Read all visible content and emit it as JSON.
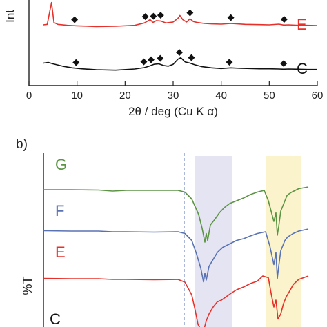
{
  "panel_b_label": "b)",
  "chart_data": [
    {
      "type": "line",
      "panel": "a",
      "title": "",
      "xlabel": "2θ / deg (Cu K α)",
      "ylabel_visible": "Int",
      "xlim": [
        0,
        60
      ],
      "xticks": [
        0,
        10,
        20,
        30,
        40,
        50,
        60
      ],
      "marker_symbol": "◆",
      "series": [
        {
          "name": "E",
          "color": "#e8302a",
          "x": [
            3,
            3.8,
            4.3,
            4.7,
            5.2,
            6,
            8,
            10,
            14,
            18,
            22,
            24,
            25.2,
            25.8,
            26.5,
            27.5,
            28.5,
            30,
            31,
            31.4,
            32,
            32.8,
            33.5,
            34.2,
            35,
            36.5,
            38,
            40,
            42,
            45,
            48,
            50,
            52,
            53,
            54,
            56,
            58,
            60
          ],
          "y": [
            0.0,
            0.02,
            0.55,
            0.95,
            0.1,
            0.02,
            -0.02,
            -0.04,
            -0.07,
            -0.06,
            -0.02,
            0.08,
            0.22,
            0.1,
            0.18,
            0.16,
            0.08,
            0.12,
            0.28,
            0.4,
            0.22,
            0.12,
            0.26,
            0.14,
            0.1,
            0.06,
            0.04,
            0.03,
            0.06,
            0.02,
            0.01,
            0.0,
            0.03,
            -0.01,
            0.0,
            -0.02,
            -0.02,
            -0.03
          ],
          "markers_x": [
            9.5,
            24.2,
            25.9,
            27.4,
            33.5,
            42.0,
            53.1
          ]
        },
        {
          "name": "C",
          "color": "#111111",
          "x": [
            3,
            4,
            5,
            7,
            9,
            11,
            14,
            18,
            22,
            24,
            25,
            26,
            27,
            28,
            29,
            30,
            31,
            31.6,
            32.5,
            33.5,
            34.5,
            36,
            38,
            40,
            42,
            44,
            46,
            48,
            50,
            52,
            53,
            54,
            56,
            58,
            60
          ],
          "y": [
            0.25,
            0.28,
            0.22,
            0.12,
            0.05,
            0.01,
            -0.03,
            -0.05,
            0.0,
            0.06,
            0.12,
            0.2,
            0.22,
            0.15,
            0.12,
            0.2,
            0.42,
            0.48,
            0.3,
            0.25,
            0.18,
            0.1,
            0.05,
            0.02,
            0.05,
            0.03,
            0.02,
            0.01,
            0.01,
            0.0,
            -0.01,
            0.0,
            -0.01,
            -0.02,
            -0.02
          ],
          "markers_x": [
            9.8,
            23.9,
            25.4,
            27.3,
            31.3,
            33.8,
            41.7,
            53.0
          ]
        }
      ]
    },
    {
      "type": "line",
      "panel": "b",
      "title": "",
      "ylabel": "%T",
      "dashed_reference_line": true,
      "highlight_bands": [
        {
          "color": "#e4e4f2"
        },
        {
          "color": "#fbf3cc"
        }
      ],
      "series": [
        {
          "name": "G",
          "color": "#5c9444",
          "x": [
            0,
            40,
            80,
            100,
            120,
            160,
            195,
            205,
            215,
            225,
            230,
            234,
            236,
            238,
            242,
            248,
            255,
            262,
            270,
            280,
            290,
            300,
            310,
            320,
            326,
            334,
            337,
            339,
            341,
            344,
            347,
            350,
            353,
            356,
            360,
            370,
            384
          ],
          "y": [
            0.02,
            0.02,
            0.01,
            -0.02,
            0.0,
            0.0,
            0.0,
            -0.05,
            -0.25,
            -0.7,
            -1.1,
            -1.5,
            -1.25,
            -1.45,
            -1.0,
            -0.85,
            -0.65,
            -0.5,
            -0.38,
            -0.3,
            -0.22,
            -0.12,
            -0.05,
            0.0,
            -0.3,
            -0.9,
            -0.65,
            -1.3,
            -1.05,
            -0.6,
            -0.45,
            -0.3,
            -0.15,
            -0.1,
            -0.05,
            0.05,
            0.1
          ]
        },
        {
          "name": "F",
          "color": "#5872b4",
          "x": [
            0,
            40,
            80,
            100,
            120,
            160,
            195,
            205,
            215,
            222,
            228,
            232,
            234,
            236,
            240,
            246,
            252,
            260,
            270,
            280,
            290,
            300,
            310,
            322,
            328,
            334,
            337,
            339,
            341,
            344,
            347,
            350,
            354,
            358,
            362,
            370,
            384
          ],
          "y": [
            0.03,
            0.02,
            0.02,
            0.0,
            0.0,
            -0.01,
            0.0,
            -0.05,
            -0.25,
            -0.65,
            -1.05,
            -1.45,
            -1.2,
            -1.4,
            -1.0,
            -0.8,
            -0.6,
            -0.45,
            -0.35,
            -0.25,
            -0.2,
            -0.12,
            -0.05,
            0.0,
            -0.4,
            -0.95,
            -0.6,
            -1.35,
            -1.0,
            -0.55,
            -0.4,
            -0.25,
            -0.15,
            -0.1,
            -0.05,
            0.02,
            0.08
          ]
        },
        {
          "name": "E",
          "color": "#e8302a",
          "x": [
            0,
            40,
            80,
            100,
            120,
            160,
            195,
            205,
            215,
            220,
            224,
            228,
            232,
            236,
            240,
            246,
            252,
            258,
            265,
            272,
            280,
            290,
            300,
            310,
            318,
            326,
            330,
            334,
            337,
            340,
            344,
            348,
            352,
            358,
            362,
            370,
            384
          ],
          "y": [
            0.03,
            0.02,
            0.02,
            0.0,
            0.0,
            -0.01,
            0.0,
            -0.08,
            -0.45,
            -0.9,
            -1.3,
            -1.45,
            -1.5,
            -1.2,
            -1.0,
            -0.8,
            -0.65,
            -0.6,
            -0.5,
            -0.4,
            -0.3,
            -0.22,
            -0.12,
            -0.05,
            0.1,
            0.05,
            -0.4,
            -0.8,
            -0.6,
            -1.15,
            -1.0,
            -0.7,
            -0.5,
            -0.3,
            -0.15,
            0.0,
            0.1
          ]
        },
        {
          "name": "C",
          "color": "#111111",
          "x": [],
          "y": []
        }
      ]
    }
  ]
}
